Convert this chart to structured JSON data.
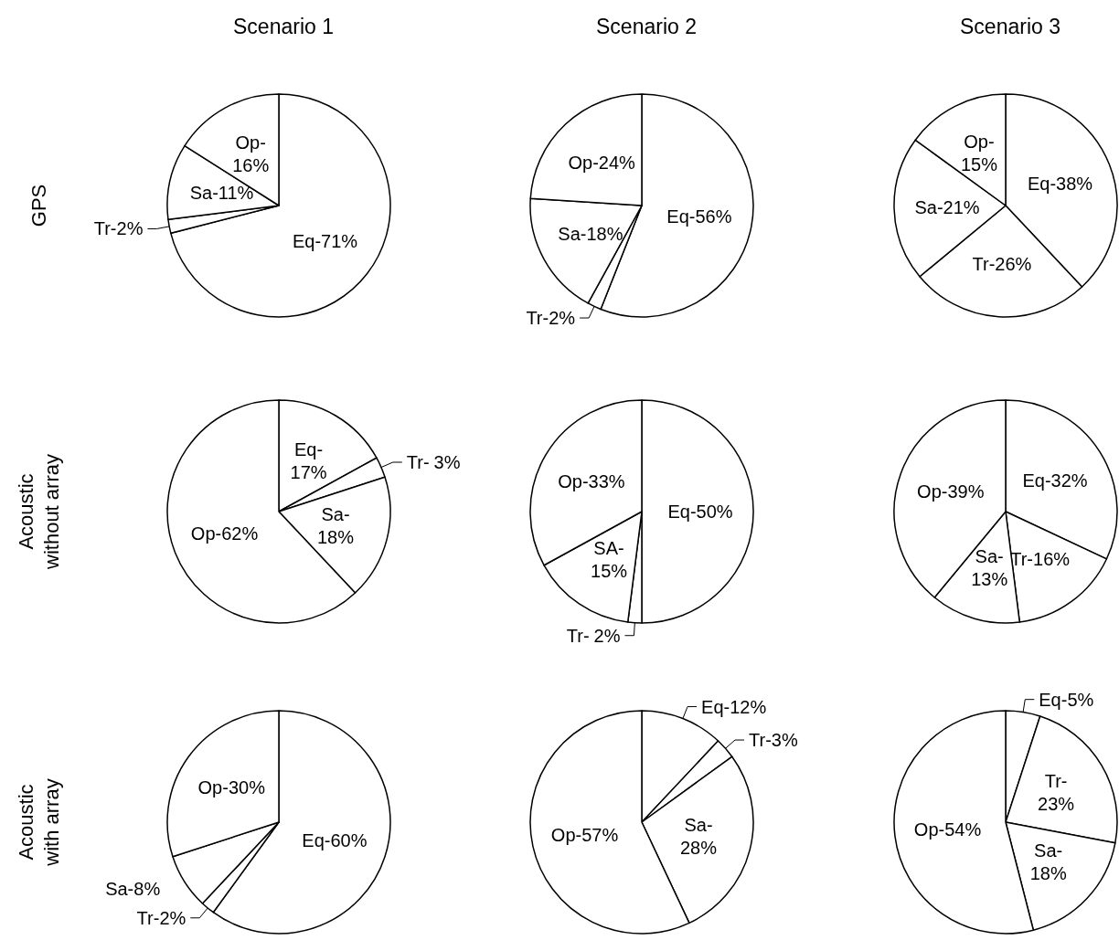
{
  "chart_data": [
    {
      "type": "pie",
      "title": "Scenario 1",
      "ylabel": "GPS",
      "categories": [
        "Eq-",
        "Tr-",
        "Sa-",
        "Op-"
      ],
      "values": [
        71,
        2,
        11,
        16
      ],
      "colors": [
        "#ffffff",
        "#ffffff",
        "#ffffff",
        "#ffffff"
      ],
      "value_labels": [
        "71%",
        "2%",
        "11%",
        "16%"
      ]
    },
    {
      "type": "pie",
      "title": "Scenario 2",
      "categories": [
        "Eq-",
        "Tr-",
        "Sa-",
        "Op-"
      ],
      "values": [
        56,
        2,
        18,
        24
      ],
      "colors": [
        "#ffffff",
        "#ffffff",
        "#ffffff",
        "#ffffff"
      ],
      "value_labels": [
        "56%",
        "2%",
        "18%",
        "24%"
      ]
    },
    {
      "type": "pie",
      "title": "Scenario 3",
      "categories": [
        "Eq-",
        "Tr-",
        "Sa-",
        "Op-"
      ],
      "values": [
        38,
        26,
        21,
        15
      ],
      "colors": [
        "#ffffff",
        "#ffffff",
        "#ffffff",
        "#ffffff"
      ],
      "value_labels": [
        "38%",
        "26%",
        "21%",
        "15%"
      ]
    },
    {
      "type": "pie",
      "ylabel": "Acoustic\nwithout array",
      "categories": [
        "Eq-",
        "Tr-",
        "Sa-",
        "Op-"
      ],
      "values": [
        17,
        3,
        18,
        62
      ],
      "colors": [
        "#ffffff",
        "#ffffff",
        "#ffffff",
        "#ffffff"
      ],
      "value_labels": [
        "17%",
        "3%",
        "18%",
        "62%"
      ]
    },
    {
      "type": "pie",
      "categories": [
        "Eq-",
        "Tr-",
        "SA-",
        "Op-"
      ],
      "values": [
        50,
        2,
        15,
        33
      ],
      "colors": [
        "#ffffff",
        "#ffffff",
        "#ffffff",
        "#ffffff"
      ],
      "value_labels": [
        "50%",
        "2%",
        "15%",
        "33%"
      ]
    },
    {
      "type": "pie",
      "categories": [
        "Eq-",
        "Tr-",
        "Sa-",
        "Op-"
      ],
      "values": [
        32,
        16,
        13,
        39
      ],
      "colors": [
        "#ffffff",
        "#ffffff",
        "#ffffff",
        "#ffffff"
      ],
      "value_labels": [
        "32%",
        "16%",
        "13%",
        "39%"
      ]
    },
    {
      "type": "pie",
      "ylabel": "Acoustic\nwith array",
      "categories": [
        "Eq-",
        "Tr-",
        "Sa-",
        "Op-"
      ],
      "values": [
        60,
        2,
        8,
        30
      ],
      "colors": [
        "#ffffff",
        "#ffffff",
        "#ffffff",
        "#ffffff"
      ],
      "value_labels": [
        "60%",
        "2%",
        "8%",
        "30%"
      ]
    },
    {
      "type": "pie",
      "categories": [
        "Eq-",
        "Tr-",
        "Sa-",
        "Op-"
      ],
      "values": [
        12,
        3,
        28,
        57
      ],
      "colors": [
        "#ffffff",
        "#ffffff",
        "#ffffff",
        "#ffffff"
      ],
      "value_labels": [
        "12%",
        "3%",
        "28%",
        "57%"
      ]
    },
    {
      "type": "pie",
      "categories": [
        "Eq-",
        "Tr-",
        "Sa-",
        "Op-"
      ],
      "values": [
        5,
        23,
        18,
        54
      ],
      "colors": [
        "#ffffff",
        "#ffffff",
        "#ffffff",
        "#ffffff"
      ],
      "value_labels": [
        "5%",
        "23%",
        "18%",
        "54%"
      ]
    }
  ]
}
